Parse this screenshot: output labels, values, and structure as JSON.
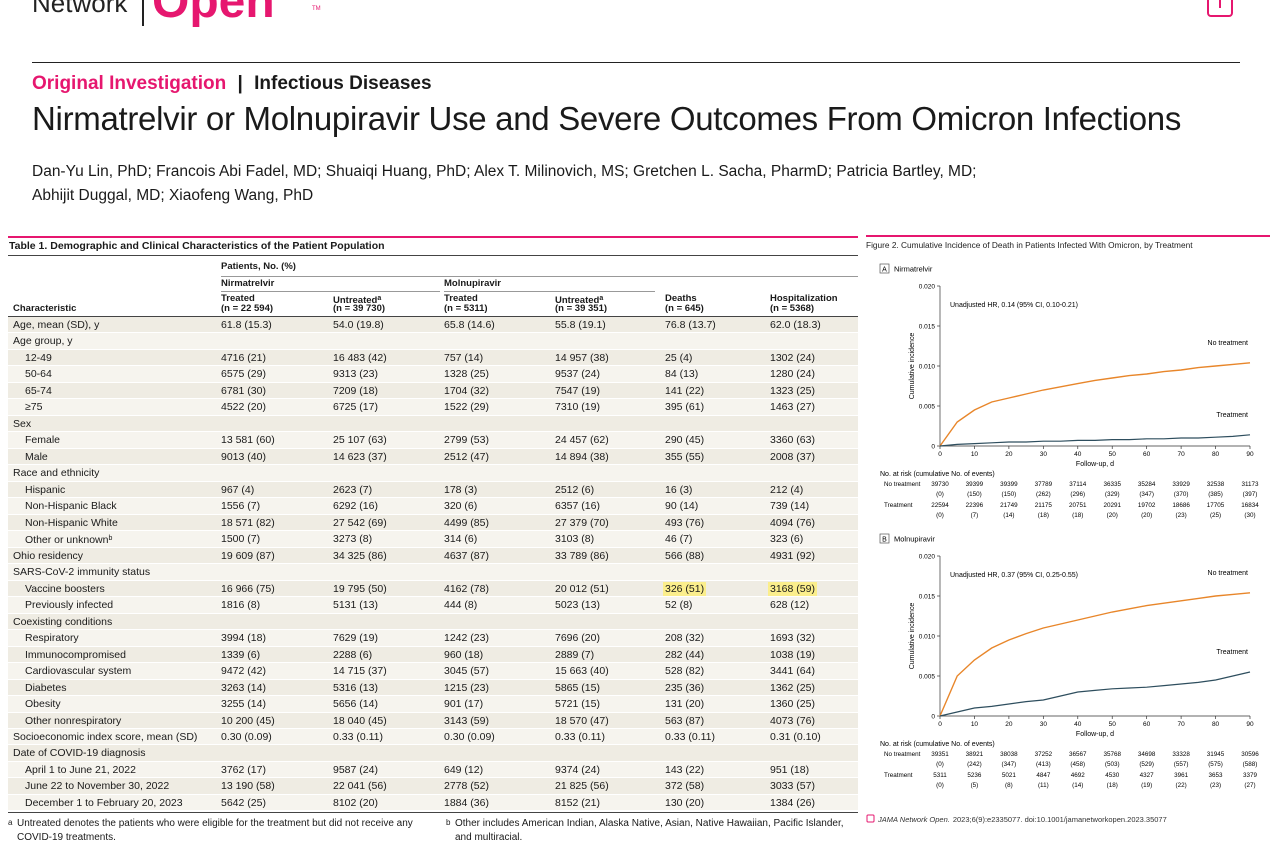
{
  "header": {
    "brand": "Network",
    "brand_accent": "Open",
    "tm": "TM"
  },
  "article": {
    "section": "Original Investigation",
    "topic": "Infectious Diseases",
    "title": "Nirmatrelvir or Molnupiravir Use and Severe Outcomes From Omicron Infections",
    "authors_line1": "Dan-Yu Lin, PhD; Francois Abi Fadel, MD; Shuaiqi Huang, PhD; Alex T. Milinovich, MS; Gretchen L. Sacha, PharmD; Patricia Bartley, MD;",
    "authors_line2": "Abhijit Duggal, MD; Xiaofeng Wang, PhD"
  },
  "table": {
    "title": "Table 1. Demographic and Clinical Characteristics of the Patient Population",
    "stub": "Characteristic",
    "spanner": "Patients, No. (%)",
    "groups": [
      "Nirmatrelvir",
      "Molnupiravir"
    ],
    "columns": [
      {
        "label": "Treated",
        "n": "(n = 22 594)"
      },
      {
        "label": "Untreated",
        "n": "(n = 39 730)",
        "note": "a"
      },
      {
        "label": "Treated",
        "n": "(n = 5311)"
      },
      {
        "label": "Untreated",
        "n": "(n = 39 351)",
        "note": "a"
      },
      {
        "label": "Deaths",
        "n": "(n = 645)"
      },
      {
        "label": "Hospitalization",
        "n": "(n = 5368)"
      }
    ],
    "body": [
      {
        "label": "Age, mean (SD), y",
        "cells": [
          "61.8 (15.3)",
          "54.0 (19.8)",
          "65.8 (14.6)",
          "55.8 (19.1)",
          "76.8 (13.7)",
          "62.0 (18.3)"
        ]
      },
      {
        "label": "Age group, y",
        "rows": [
          {
            "label": "12-49",
            "cells": [
              "4716 (21)",
              "16 483 (42)",
              "757 (14)",
              "14 957 (38)",
              "25 (4)",
              "1302 (24)"
            ]
          },
          {
            "label": "50-64",
            "cells": [
              "6575 (29)",
              "9313 (23)",
              "1328 (25)",
              "9537 (24)",
              "84 (13)",
              "1280 (24)"
            ]
          },
          {
            "label": "65-74",
            "cells": [
              "6781 (30)",
              "7209 (18)",
              "1704 (32)",
              "7547 (19)",
              "141 (22)",
              "1323 (25)"
            ]
          },
          {
            "label": "≥75",
            "cells": [
              "4522 (20)",
              "6725 (17)",
              "1522 (29)",
              "7310 (19)",
              "395 (61)",
              "1463 (27)"
            ]
          }
        ]
      },
      {
        "label": "Sex",
        "rows": [
          {
            "label": "Female",
            "cells": [
              "13 581 (60)",
              "25 107 (63)",
              "2799 (53)",
              "24 457 (62)",
              "290 (45)",
              "3360 (63)"
            ]
          },
          {
            "label": "Male",
            "cells": [
              "9013 (40)",
              "14 623 (37)",
              "2512 (47)",
              "14 894 (38)",
              "355 (55)",
              "2008 (37)"
            ]
          }
        ]
      },
      {
        "label": "Race and ethnicity",
        "rows": [
          {
            "label": "Hispanic",
            "cells": [
              "967 (4)",
              "2623 (7)",
              "178 (3)",
              "2512 (6)",
              "16 (3)",
              "212 (4)"
            ]
          },
          {
            "label": "Non-Hispanic Black",
            "cells": [
              "1556 (7)",
              "6292 (16)",
              "320 (6)",
              "6357 (16)",
              "90 (14)",
              "739 (14)"
            ]
          },
          {
            "label": "Non-Hispanic White",
            "cells": [
              "18 571 (82)",
              "27 542 (69)",
              "4499 (85)",
              "27 379 (70)",
              "493 (76)",
              "4094 (76)"
            ]
          },
          {
            "label": "Other or unknown",
            "note": "b",
            "cells": [
              "1500 (7)",
              "3273 (8)",
              "314 (6)",
              "3103 (8)",
              "46 (7)",
              "323 (6)"
            ]
          }
        ]
      },
      {
        "label": "Ohio residency",
        "cells": [
          "19 609 (87)",
          "34 325 (86)",
          "4637 (87)",
          "33 789 (86)",
          "566 (88)",
          "4931 (92)"
        ]
      },
      {
        "label": "SARS-CoV-2 immunity status",
        "rows": [
          {
            "label": "Vaccine boosters",
            "cells": [
              "16 966 (75)",
              "19 795 (50)",
              "4162 (78)",
              "20 012 (51)",
              "326 (51)",
              "3168 (59)"
            ],
            "highlight": [
              4,
              5
            ]
          },
          {
            "label": "Previously infected",
            "cells": [
              "1816 (8)",
              "5131 (13)",
              "444 (8)",
              "5023 (13)",
              "52 (8)",
              "628 (12)"
            ]
          }
        ]
      },
      {
        "label": "Coexisting conditions",
        "rows": [
          {
            "label": "Respiratory",
            "cells": [
              "3994 (18)",
              "7629 (19)",
              "1242 (23)",
              "7696 (20)",
              "208 (32)",
              "1693 (32)"
            ]
          },
          {
            "label": "Immunocompromised",
            "cells": [
              "1339 (6)",
              "2288 (6)",
              "960 (18)",
              "2889 (7)",
              "282 (44)",
              "1038 (19)"
            ]
          },
          {
            "label": "Cardiovascular system",
            "cells": [
              "9472 (42)",
              "14 715 (37)",
              "3045 (57)",
              "15 663 (40)",
              "528 (82)",
              "3441 (64)"
            ]
          },
          {
            "label": "Diabetes",
            "cells": [
              "3263 (14)",
              "5316 (13)",
              "1215 (23)",
              "5865 (15)",
              "235 (36)",
              "1362 (25)"
            ]
          },
          {
            "label": "Obesity",
            "cells": [
              "3255 (14)",
              "5656 (14)",
              "901 (17)",
              "5721 (15)",
              "131 (20)",
              "1360 (25)"
            ]
          },
          {
            "label": "Other nonrespiratory",
            "cells": [
              "10 200 (45)",
              "18 040 (45)",
              "3143 (59)",
              "18 570 (47)",
              "563 (87)",
              "4073 (76)"
            ]
          }
        ]
      },
      {
        "label": "Socioeconomic index score, mean (SD)",
        "cells": [
          "0.30 (0.09)",
          "0.33 (0.11)",
          "0.30 (0.09)",
          "0.33 (0.11)",
          "0.33 (0.11)",
          "0.31 (0.10)"
        ]
      },
      {
        "label": "Date of COVID-19 diagnosis",
        "rows": [
          {
            "label": "April 1 to June 21, 2022",
            "cells": [
              "3762 (17)",
              "9587 (24)",
              "649 (12)",
              "9374 (24)",
              "143 (22)",
              "951 (18)"
            ]
          },
          {
            "label": "June 22 to November 30, 2022",
            "cells": [
              "13 190 (58)",
              "22 041 (56)",
              "2778 (52)",
              "21 825 (56)",
              "372 (58)",
              "3033 (57)"
            ]
          },
          {
            "label": "December 1 to February 20, 2023",
            "cells": [
              "5642 (25)",
              "8102 (20)",
              "1884 (36)",
              "8152 (21)",
              "130 (20)",
              "1384 (26)"
            ]
          }
        ]
      }
    ],
    "footnotes": [
      {
        "mark": "a",
        "text": "Untreated denotes the patients who were eligible for the treatment but did not receive any COVID-19 treatments."
      },
      {
        "mark": "b",
        "text": "Other includes American Indian, Alaska Native, Asian, Native Hawaiian, Pacific Islander, and multiracial."
      }
    ]
  },
  "figure": {
    "title": "Figure 2. Cumulative Incidence of Death in Patients Infected With Omicron, by Treatment",
    "panels": [
      {
        "type": "line",
        "label": "A",
        "name": "Nirmatrelvir",
        "annotation": "Unadjusted HR, 0.14 (95% CI, 0.10-0.21)",
        "ylabel": "Cumulative incidence",
        "xlabel": "Follow-up, d",
        "xlim": [
          0,
          90
        ],
        "xticks": [
          0,
          10,
          20,
          30,
          40,
          50,
          60,
          70,
          80,
          90
        ],
        "ylim": [
          0,
          0.02
        ],
        "yticks": [
          0,
          0.005,
          {
            "value": 0.01,
            "label": "0.010"
          },
          0.015,
          {
            "value": 0.02,
            "label": "0.020"
          }
        ],
        "x": [
          0,
          5,
          10,
          15,
          20,
          25,
          30,
          35,
          40,
          45,
          50,
          55,
          60,
          65,
          70,
          75,
          80,
          85,
          90
        ],
        "series": [
          {
            "name": "No treatment",
            "color": "#e8862a",
            "values": [
              0,
              0.003,
              0.0045,
              0.0055,
              0.006,
              0.0065,
              0.007,
              0.0074,
              0.0078,
              0.0082,
              0.0085,
              0.0088,
              0.009,
              0.0093,
              0.0095,
              0.0098,
              0.01,
              0.0102,
              0.0104
            ]
          },
          {
            "name": "Treatment",
            "color": "#2e4e5e",
            "values": [
              0,
              0.0002,
              0.0003,
              0.0004,
              0.0005,
              0.0005,
              0.0006,
              0.0006,
              0.0007,
              0.0007,
              0.0008,
              0.0008,
              0.0009,
              0.0009,
              0.001,
              0.001,
              0.0011,
              0.0012,
              0.0014
            ]
          }
        ],
        "at_risk": {
          "title": "No. at risk (cumulative No. of events)",
          "rows": [
            {
              "name": "No treatment",
              "counts": [
                "39730",
                "39399",
                "39399",
                "37789",
                "37114",
                "36335",
                "35284",
                "33929",
                "32538",
                "31173"
              ],
              "events": [
                "(0)",
                "(150)",
                "(150)",
                "(262)",
                "(296)",
                "(329)",
                "(347)",
                "(370)",
                "(385)",
                "(397)"
              ]
            },
            {
              "name": "Treatment",
              "counts": [
                "22594",
                "22396",
                "21749",
                "21175",
                "20751",
                "20291",
                "19702",
                "18686",
                "17705",
                "16834"
              ],
              "events": [
                "(0)",
                "(7)",
                "(14)",
                "(18)",
                "(18)",
                "(20)",
                "(20)",
                "(23)",
                "(25)",
                "(30)"
              ]
            }
          ]
        }
      },
      {
        "type": "line",
        "label": "B",
        "name": "Molnupiravir",
        "annotation": "Unadjusted HR, 0.37 (95% CI, 0.25-0.55)",
        "ylabel": "Cumulative incidence",
        "xlabel": "Follow-up, d",
        "xlim": [
          0,
          90
        ],
        "xticks": [
          0,
          10,
          20,
          30,
          40,
          50,
          60,
          70,
          80,
          90
        ],
        "ylim": [
          0,
          0.02
        ],
        "yticks": [
          0,
          0.005,
          {
            "value": 0.01,
            "label": "0.010"
          },
          0.015,
          {
            "value": 0.02,
            "label": "0.020"
          }
        ],
        "x": [
          0,
          5,
          10,
          15,
          20,
          25,
          30,
          35,
          40,
          45,
          50,
          55,
          60,
          65,
          70,
          75,
          80,
          85,
          90
        ],
        "series": [
          {
            "name": "No treatment",
            "color": "#e8862a",
            "values": [
              0,
              0.005,
              0.007,
              0.0085,
              0.0095,
              0.0103,
              0.011,
              0.0115,
              0.012,
              0.0125,
              0.013,
              0.0134,
              0.0138,
              0.0141,
              0.0144,
              0.0147,
              0.015,
              0.0152,
              0.0154
            ]
          },
          {
            "name": "Treatment",
            "color": "#2e4e5e",
            "values": [
              0,
              0.0005,
              0.001,
              0.0012,
              0.0015,
              0.0018,
              0.002,
              0.0025,
              0.003,
              0.0032,
              0.0034,
              0.0035,
              0.0036,
              0.0038,
              0.004,
              0.0042,
              0.0045,
              0.005,
              0.0055
            ]
          }
        ],
        "at_risk": {
          "title": "No. at risk (cumulative No. of events)",
          "rows": [
            {
              "name": "No treatment",
              "counts": [
                "39351",
                "38921",
                "38038",
                "37252",
                "36567",
                "35768",
                "34698",
                "33328",
                "31945",
                "30596"
              ],
              "events": [
                "(0)",
                "(242)",
                "(347)",
                "(413)",
                "(458)",
                "(503)",
                "(529)",
                "(557)",
                "(575)",
                "(588)"
              ]
            },
            {
              "name": "Treatment",
              "counts": [
                "5311",
                "5236",
                "5021",
                "4847",
                "4692",
                "4530",
                "4327",
                "3961",
                "3653",
                "3379"
              ],
              "events": [
                "(0)",
                "(5)",
                "(8)",
                "(11)",
                "(14)",
                "(18)",
                "(19)",
                "(22)",
                "(23)",
                "(27)"
              ]
            }
          ]
        }
      }
    ],
    "citation": {
      "journal": "JAMA Network Open.",
      "rest": "2023;6(9):e2335077. doi:10.1001/jamanetworkopen.2023.35077"
    }
  }
}
